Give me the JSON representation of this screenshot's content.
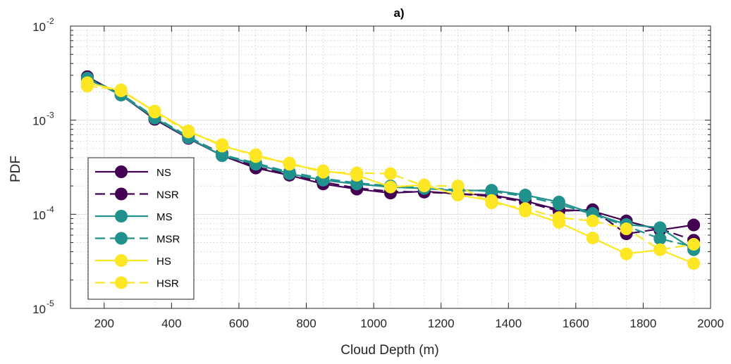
{
  "chart_data": {
    "type": "line",
    "title": "a)",
    "xlabel": "Cloud Depth (m)",
    "ylabel": "PDF",
    "xlim": [
      100,
      2000
    ],
    "ylim": [
      1e-05,
      0.01
    ],
    "yscale": "log",
    "grid": true,
    "minor_grid": true,
    "legend_position": "bottom-left",
    "x_ticks": [
      200,
      400,
      600,
      800,
      1000,
      1200,
      1400,
      1600,
      1800,
      2000
    ],
    "x_tick_labels": [
      "200",
      "400",
      "600",
      "800",
      "1000",
      "1200",
      "1400",
      "1600",
      "1800",
      "2000"
    ],
    "y_ticks": [
      1e-05,
      0.0001,
      0.001,
      0.01
    ],
    "y_tick_labels": [
      {
        "base": "10",
        "exp": "-5"
      },
      {
        "base": "10",
        "exp": "-4"
      },
      {
        "base": "10",
        "exp": "-3"
      },
      {
        "base": "10",
        "exp": "-2"
      }
    ],
    "x": [
      150,
      250,
      350,
      450,
      550,
      650,
      750,
      850,
      950,
      1050,
      1150,
      1250,
      1350,
      1450,
      1550,
      1650,
      1750,
      1850,
      1950
    ],
    "series": [
      {
        "name": "NS",
        "color": "#440154",
        "dash": "solid",
        "values": [
          0.0029,
          0.00185,
          0.00102,
          0.00064,
          0.00042,
          0.00031,
          0.00026,
          0.00021,
          0.000185,
          0.000168,
          0.000175,
          0.000165,
          0.00016,
          0.000138,
          0.000112,
          0.000108,
          8.5e-05,
          6.8e-05,
          7.7e-05
        ]
      },
      {
        "name": "NSR",
        "color": "#440154",
        "dash": "dashed",
        "values": [
          0.00275,
          0.0019,
          0.00105,
          0.00066,
          0.00044,
          0.00032,
          0.000265,
          0.00022,
          0.00019,
          0.000175,
          0.000172,
          0.000165,
          0.000155,
          0.000135,
          0.000108,
          0.000112,
          6.2e-05,
          7e-05,
          5.3e-05
        ]
      },
      {
        "name": "MS",
        "color": "#21918c",
        "dash": "solid",
        "values": [
          0.00275,
          0.00185,
          0.00105,
          0.00065,
          0.00042,
          0.00034,
          0.00027,
          0.00023,
          0.00021,
          0.000195,
          0.000188,
          0.000178,
          0.00018,
          0.00016,
          0.000135,
          0.000102,
          7.8e-05,
          7.2e-05,
          4.2e-05
        ]
      },
      {
        "name": "MSR",
        "color": "#21918c",
        "dash": "dashed",
        "values": [
          0.0028,
          0.0019,
          0.00108,
          0.00067,
          0.00043,
          0.00035,
          0.00028,
          0.00024,
          0.000215,
          0.0002,
          0.00019,
          0.000182,
          0.000175,
          0.000155,
          0.000128,
          0.0001,
          7.5e-05,
          5.5e-05,
          4.5e-05
        ]
      },
      {
        "name": "HS",
        "color": "#fde725",
        "dash": "solid",
        "values": [
          0.0025,
          0.00205,
          0.00125,
          0.00077,
          0.00053,
          0.00043,
          0.00034,
          0.00029,
          0.00026,
          0.000195,
          0.000205,
          0.00016,
          0.00014,
          0.000108,
          8.2e-05,
          5.6e-05,
          3.8e-05,
          4.2e-05,
          3e-05
        ]
      },
      {
        "name": "HSR",
        "color": "#fde725",
        "dash": "dashed",
        "values": [
          0.0023,
          0.0021,
          0.00122,
          0.00075,
          0.00055,
          0.00041,
          0.00035,
          0.00028,
          0.000275,
          0.00027,
          0.0002,
          0.0002,
          0.000132,
          0.000115,
          9.2e-05,
          8.5e-05,
          7e-05,
          4.2e-05,
          4.8e-05
        ]
      }
    ]
  }
}
